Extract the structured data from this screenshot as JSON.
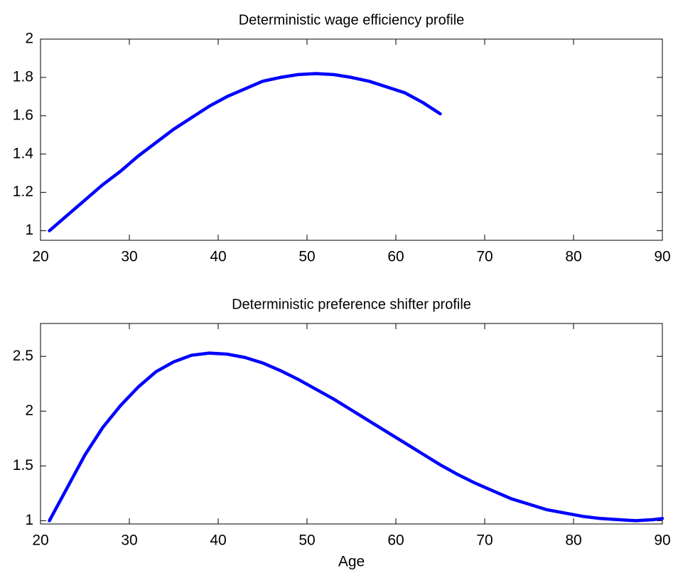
{
  "chart_data": [
    {
      "type": "line",
      "title": "Deterministic wage efficiency profile",
      "x": [
        21,
        23,
        25,
        27,
        29,
        31,
        33,
        35,
        37,
        39,
        41,
        43,
        45,
        47,
        49,
        51,
        53,
        55,
        57,
        59,
        61,
        63,
        65
      ],
      "series": [
        {
          "color": "#0000ff",
          "values": [
            1.0,
            1.08,
            1.16,
            1.24,
            1.31,
            1.39,
            1.46,
            1.53,
            1.59,
            1.65,
            1.7,
            1.74,
            1.78,
            1.8,
            1.815,
            1.82,
            1.815,
            1.8,
            1.78,
            1.75,
            1.72,
            1.67,
            1.61
          ]
        }
      ],
      "xlim": [
        20,
        90
      ],
      "xticks": [
        20,
        30,
        40,
        50,
        60,
        70,
        80,
        90
      ],
      "ylim": [
        0.95,
        2
      ],
      "yticks": [
        1,
        1.2,
        1.4,
        1.6,
        1.8,
        2
      ],
      "grid": false
    },
    {
      "type": "line",
      "title": "Deterministic preference shifter profile",
      "xlabel": "Age",
      "x": [
        21,
        23,
        25,
        27,
        29,
        31,
        33,
        35,
        37,
        39,
        41,
        43,
        45,
        47,
        49,
        51,
        53,
        55,
        57,
        59,
        61,
        63,
        65,
        67,
        69,
        71,
        73,
        75,
        77,
        79,
        81,
        83,
        85,
        87,
        89,
        90
      ],
      "series": [
        {
          "color": "#0000ff",
          "values": [
            1.0,
            1.3,
            1.6,
            1.85,
            2.05,
            2.22,
            2.36,
            2.45,
            2.51,
            2.53,
            2.52,
            2.49,
            2.44,
            2.37,
            2.29,
            2.2,
            2.11,
            2.01,
            1.91,
            1.81,
            1.71,
            1.61,
            1.51,
            1.42,
            1.34,
            1.27,
            1.2,
            1.15,
            1.1,
            1.07,
            1.04,
            1.02,
            1.01,
            1.0,
            1.01,
            1.02
          ]
        }
      ],
      "xlim": [
        20,
        90
      ],
      "xticks": [
        20,
        30,
        40,
        50,
        60,
        70,
        80,
        90
      ],
      "ylim": [
        0.97,
        2.8
      ],
      "yticks": [
        1,
        1.5,
        2,
        2.5
      ],
      "grid": false
    }
  ]
}
